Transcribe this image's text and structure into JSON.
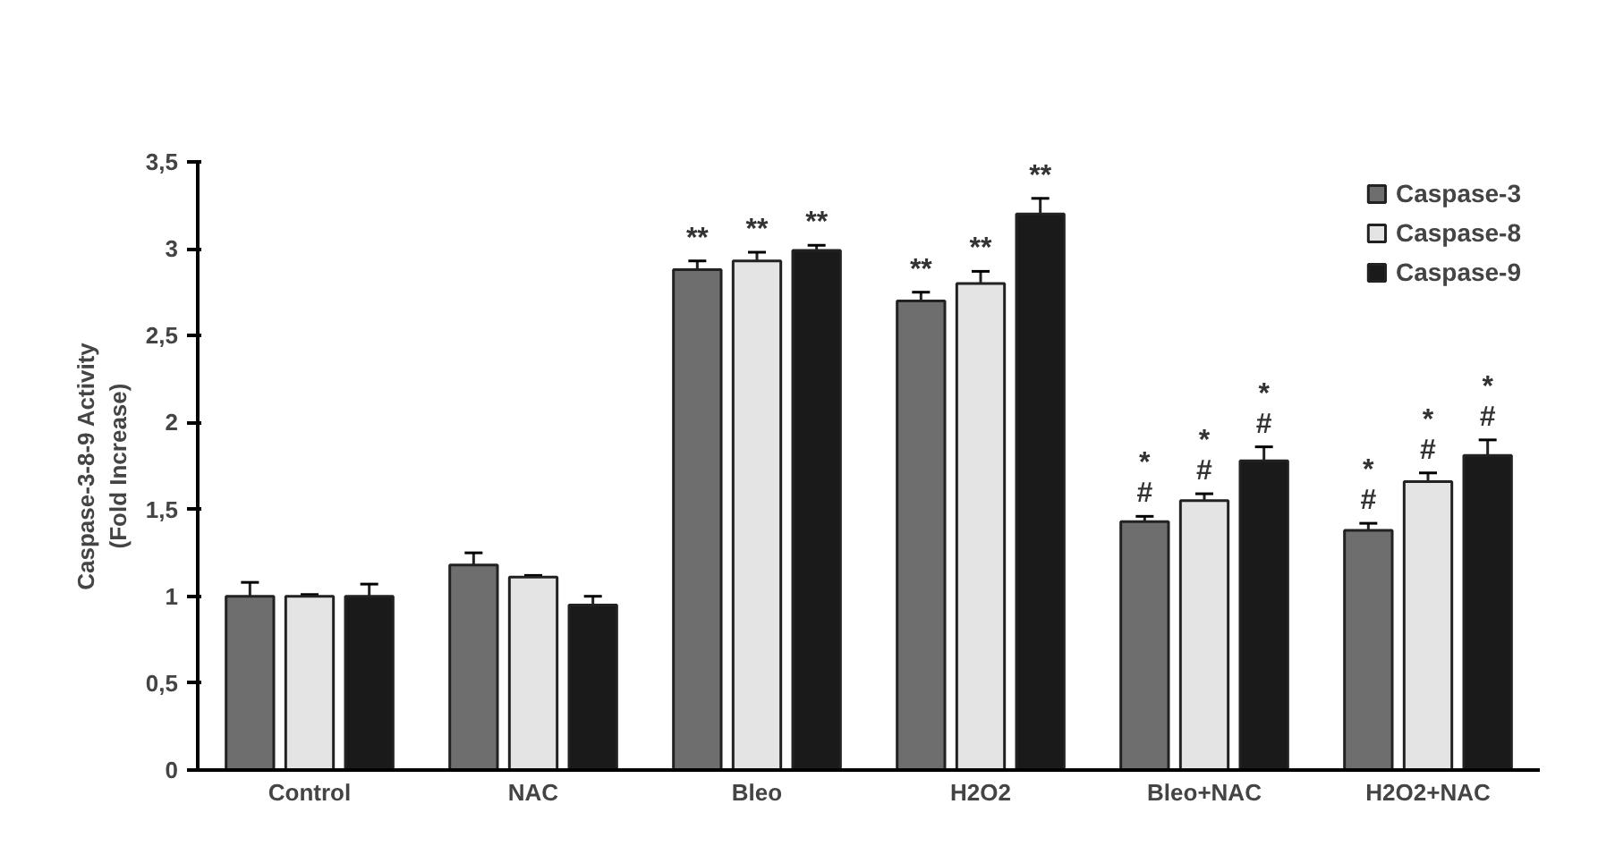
{
  "chart_data": {
    "type": "bar",
    "ylabel": "Caspase-3-8-9 Activity\n(Fold Increase)",
    "categories": [
      "Control",
      "NAC",
      "Bleo",
      "H2O2",
      "Bleo+NAC",
      "H2O2+NAC"
    ],
    "series": [
      {
        "name": "Caspase-3",
        "color": "#6e6e6e",
        "values": [
          1.0,
          1.18,
          2.88,
          2.7,
          1.43,
          1.38
        ],
        "errors": [
          0.08,
          0.07,
          0.05,
          0.05,
          0.03,
          0.04
        ]
      },
      {
        "name": "Caspase-8",
        "color": "#e4e4e4",
        "values": [
          1.0,
          1.11,
          2.93,
          2.8,
          1.55,
          1.66
        ],
        "errors": [
          0.01,
          0.01,
          0.05,
          0.07,
          0.04,
          0.05
        ]
      },
      {
        "name": "Caspase-9",
        "color": "#1a1a1a",
        "values": [
          1.0,
          0.95,
          2.99,
          3.2,
          1.78,
          1.81
        ],
        "errors": [
          0.07,
          0.05,
          0.03,
          0.09,
          0.08,
          0.09
        ]
      }
    ],
    "ylim": [
      0,
      3.5
    ],
    "yticks": [
      0,
      {
        "value": 0.5,
        "label": "0,5"
      },
      1,
      {
        "value": 1.5,
        "label": "1,5"
      },
      2,
      {
        "value": 2.5,
        "label": "2,5"
      },
      3,
      {
        "value": 3.5,
        "label": "3,5"
      }
    ],
    "grid": false,
    "legend": "top right",
    "annotations": [
      "**",
      "**",
      "**",
      "**",
      "**",
      "**",
      "*\n#",
      "*\n#",
      "*\n#",
      "*\n#",
      "*\n#",
      "*\n#"
    ]
  }
}
